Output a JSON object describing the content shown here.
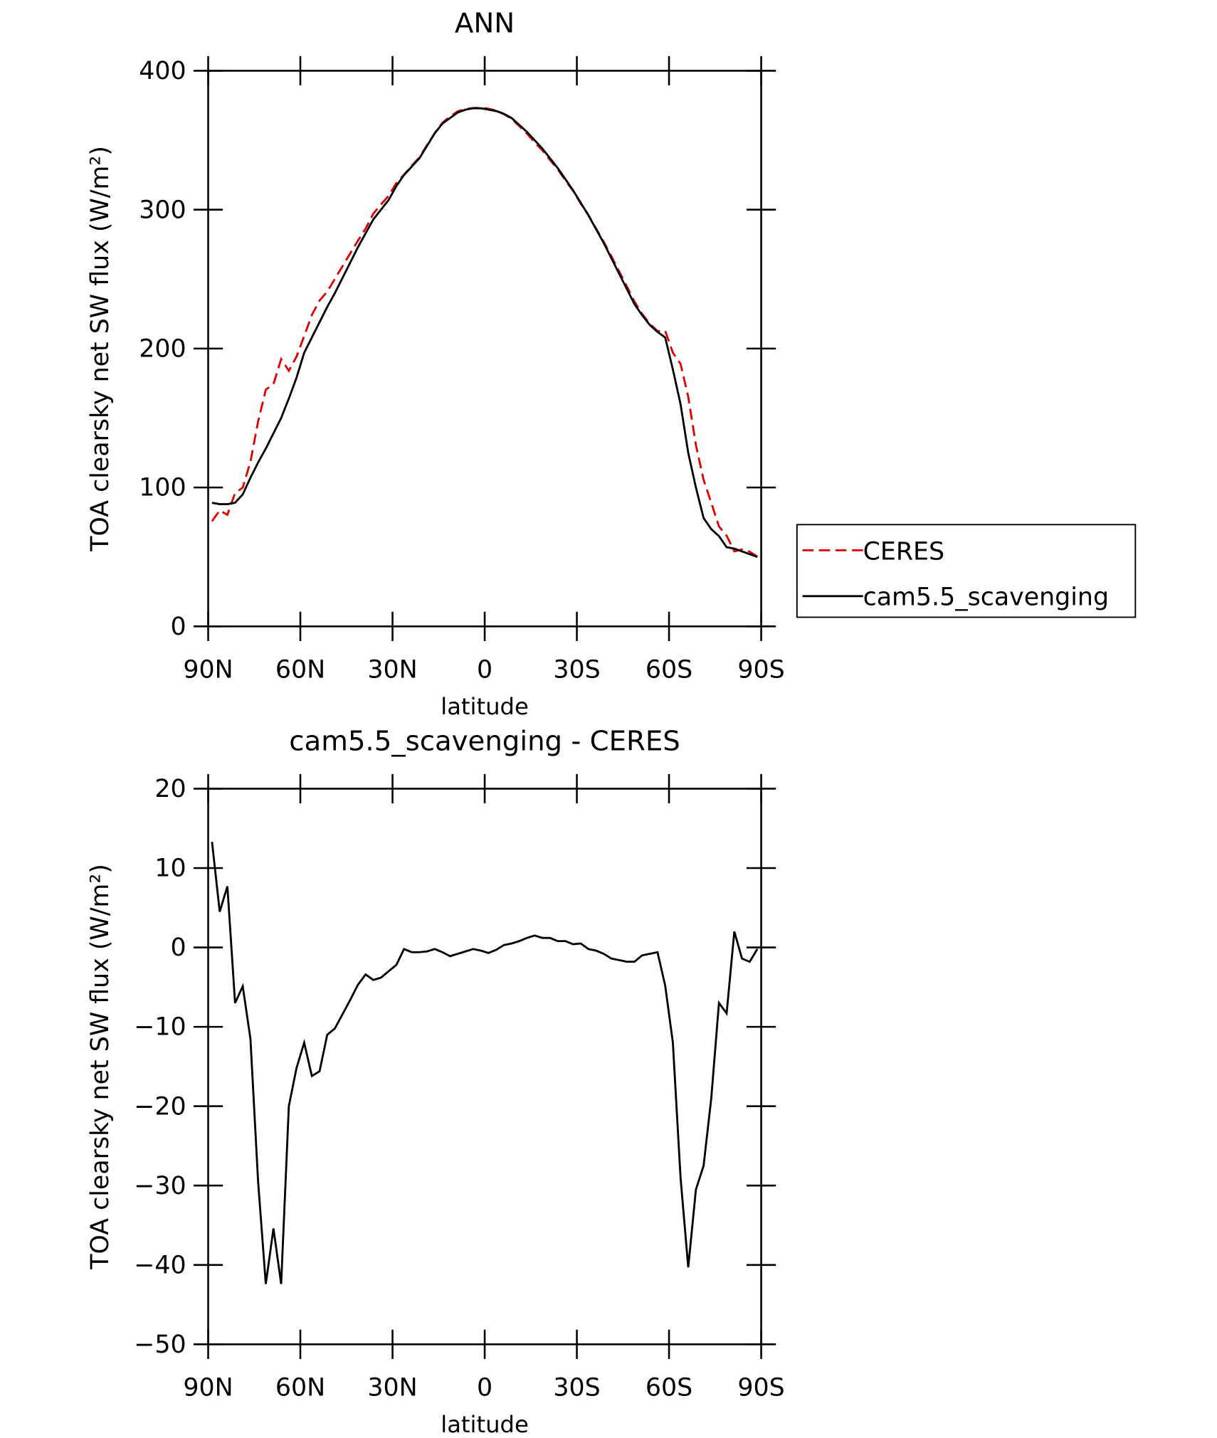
{
  "chart_data": [
    {
      "type": "line",
      "title": "ANN",
      "xlabel": "latitude",
      "ylabel": "TOA clearsky net SW flux (W/m²)",
      "xlim": [
        90,
        -90
      ],
      "xticks": [
        {
          "value": 90,
          "label": "90N"
        },
        {
          "value": 60,
          "label": "60N"
        },
        {
          "value": 30,
          "label": "30N"
        },
        0,
        {
          "value": -30,
          "label": "30S"
        },
        {
          "value": -60,
          "label": "60S"
        },
        {
          "value": -90,
          "label": "90S"
        }
      ],
      "ylim": [
        0,
        400
      ],
      "yticks": [
        0,
        100,
        200,
        300,
        400
      ],
      "legend": "right",
      "x": [
        88.75,
        86.25,
        83.75,
        81.25,
        78.75,
        76.25,
        73.75,
        71.25,
        68.75,
        66.25,
        63.75,
        61.25,
        58.75,
        56.25,
        53.75,
        51.25,
        48.75,
        46.25,
        43.75,
        41.25,
        38.75,
        36.25,
        33.75,
        31.25,
        28.75,
        26.25,
        23.75,
        21.25,
        18.75,
        16.25,
        13.75,
        11.25,
        8.75,
        6.25,
        3.75,
        1.25,
        -1.25,
        -3.75,
        -6.25,
        -8.75,
        -11.25,
        -13.75,
        -16.25,
        -18.75,
        -21.25,
        -23.75,
        -26.25,
        -28.75,
        -31.25,
        -33.75,
        -36.25,
        -38.75,
        -41.25,
        -43.75,
        -46.25,
        -48.75,
        -51.25,
        -53.75,
        -56.25,
        -58.75,
        -61.25,
        -63.75,
        -66.25,
        -68.75,
        -71.25,
        -73.75,
        -76.25,
        -78.75,
        -81.25,
        -83.75,
        -86.25,
        -88.75
      ],
      "series": [
        {
          "name": "CERES",
          "color": "#e00000",
          "dashed": true,
          "values": [
            75.7,
            83.5,
            80.3,
            96,
            99.9,
            118.5,
            147.5,
            170.4,
            174.4,
            192.4,
            184,
            194.2,
            209,
            224.2,
            234.6,
            241,
            250.2,
            259.4,
            268.6,
            277.7,
            286.4,
            297.1,
            303.8,
            310,
            319.2,
            325.2,
            331.6,
            337.6,
            346.5,
            355.2,
            362.6,
            367.1,
            370.8,
            372.5,
            373.2,
            373.4,
            372.7,
            371.3,
            368.7,
            365.5,
            360.2,
            354.8,
            348.5,
            342.8,
            335.8,
            329.2,
            321.2,
            313.6,
            304.5,
            296.2,
            286.4,
            276.8,
            266.4,
            255.6,
            244.8,
            233.8,
            225,
            217.8,
            212.6,
            212.8,
            197,
            189,
            165.3,
            130.5,
            105.5,
            89,
            72,
            65.3,
            54,
            55.4,
            53.8,
            50.2
          ]
        },
        {
          "name": "cam5.5_scavenging",
          "color": "#000000",
          "dashed": false,
          "values": [
            89,
            88,
            88,
            89,
            95,
            107,
            118,
            128,
            139,
            150,
            164,
            179,
            197,
            208,
            219,
            230,
            240,
            251,
            262,
            273,
            283,
            293,
            300,
            307,
            317,
            325,
            331,
            337,
            346,
            355,
            362,
            366,
            370,
            372,
            373,
            373,
            372,
            371,
            369,
            366,
            361,
            356,
            350,
            344,
            337,
            330,
            322,
            314,
            305,
            296,
            286,
            276,
            265,
            254,
            243,
            232,
            224,
            217,
            212,
            208,
            185,
            160,
            125,
            100,
            78,
            70,
            65,
            57,
            56,
            54,
            52,
            50
          ]
        }
      ]
    },
    {
      "type": "line",
      "title": "cam5.5_scavenging - CERES",
      "xlabel": "latitude",
      "ylabel": "TOA clearsky net SW flux (W/m²)",
      "xlim": [
        90,
        -90
      ],
      "xticks": [
        {
          "value": 90,
          "label": "90N"
        },
        {
          "value": 60,
          "label": "60N"
        },
        {
          "value": 30,
          "label": "30N"
        },
        0,
        {
          "value": -30,
          "label": "30S"
        },
        {
          "value": -60,
          "label": "60S"
        },
        {
          "value": -90,
          "label": "90S"
        }
      ],
      "ylim": [
        -50,
        20
      ],
      "yticks": [
        {
          "value": -50,
          "label": "−50"
        },
        {
          "value": -40,
          "label": "−40"
        },
        {
          "value": -30,
          "label": "−30"
        },
        {
          "value": -20,
          "label": "−20"
        },
        {
          "value": -10,
          "label": "−10"
        },
        0,
        10,
        20
      ],
      "x": [
        88.75,
        86.25,
        83.75,
        81.25,
        78.75,
        76.25,
        73.75,
        71.25,
        68.75,
        66.25,
        63.75,
        61.25,
        58.75,
        56.25,
        53.75,
        51.25,
        48.75,
        46.25,
        43.75,
        41.25,
        38.75,
        36.25,
        33.75,
        31.25,
        28.75,
        26.25,
        23.75,
        21.25,
        18.75,
        16.25,
        13.75,
        11.25,
        8.75,
        6.25,
        3.75,
        1.25,
        -1.25,
        -3.75,
        -6.25,
        -8.75,
        -11.25,
        -13.75,
        -16.25,
        -18.75,
        -21.25,
        -23.75,
        -26.25,
        -28.75,
        -31.25,
        -33.75,
        -36.25,
        -38.75,
        -41.25,
        -43.75,
        -46.25,
        -48.75,
        -51.25,
        -53.75,
        -56.25,
        -58.75,
        -61.25,
        -63.75,
        -66.25,
        -68.75,
        -71.25,
        -73.75,
        -76.25,
        -78.75,
        -81.25,
        -83.75,
        -86.25,
        -88.75
      ],
      "series": [
        {
          "color": "#000000",
          "values": [
            13.3,
            4.5,
            7.7,
            -7,
            -4.9,
            -11.5,
            -29.5,
            -42.4,
            -35.4,
            -42.4,
            -20,
            -15.2,
            -12,
            -16.2,
            -15.6,
            -11,
            -10.2,
            -8.4,
            -6.6,
            -4.7,
            -3.4,
            -4.1,
            -3.8,
            -3,
            -2.2,
            -0.2,
            -0.6,
            -0.6,
            -0.5,
            -0.2,
            -0.6,
            -1.1,
            -0.8,
            -0.5,
            -0.2,
            -0.4,
            -0.7,
            -0.3,
            0.3,
            0.5,
            0.8,
            1.2,
            1.5,
            1.2,
            1.2,
            0.8,
            0.8,
            0.4,
            0.5,
            -0.2,
            -0.4,
            -0.8,
            -1.4,
            -1.6,
            -1.8,
            -1.8,
            -1,
            -0.8,
            -0.6,
            -4.8,
            -12,
            -29,
            -40.3,
            -30.5,
            -27.5,
            -19,
            -7,
            -8.3,
            2,
            -1.4,
            -1.8,
            -0.2
          ]
        }
      ]
    }
  ]
}
